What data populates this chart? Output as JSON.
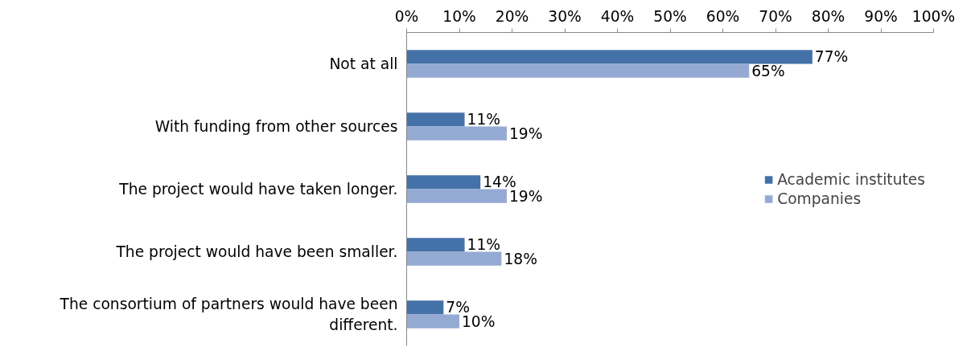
{
  "chart_data": {
    "type": "bar",
    "orientation": "horizontal",
    "categories": [
      "Not at all",
      "With funding from other sources",
      "The project would have taken longer.",
      "The project would have been smaller.",
      "The consortium of partners would have been different."
    ],
    "series": [
      {
        "name": "Academic institutes",
        "color": "#4472a8",
        "values": [
          77,
          11,
          14,
          11,
          7
        ],
        "value_labels": [
          "77%",
          "11%",
          "14%",
          "11%",
          "7%"
        ]
      },
      {
        "name": "Companies",
        "color": "#95aad3",
        "values": [
          65,
          19,
          19,
          18,
          10
        ],
        "value_labels": [
          "65%",
          "19%",
          "19%",
          "18%",
          "10%"
        ]
      }
    ],
    "xlim": [
      0,
      100
    ],
    "xticks": [
      {
        "value": 0,
        "label": "0%"
      },
      {
        "value": 10,
        "label": "10%"
      },
      {
        "value": 20,
        "label": "20%"
      },
      {
        "value": 30,
        "label": "30%"
      },
      {
        "value": 40,
        "label": "40%"
      },
      {
        "value": 50,
        "label": "50%"
      },
      {
        "value": 60,
        "label": "60%"
      },
      {
        "value": 70,
        "label": "70%"
      },
      {
        "value": 80,
        "label": "80%"
      },
      {
        "value": 90,
        "label": "90%"
      },
      {
        "value": 100,
        "label": "100%"
      }
    ],
    "grid": false,
    "legend": "right"
  }
}
